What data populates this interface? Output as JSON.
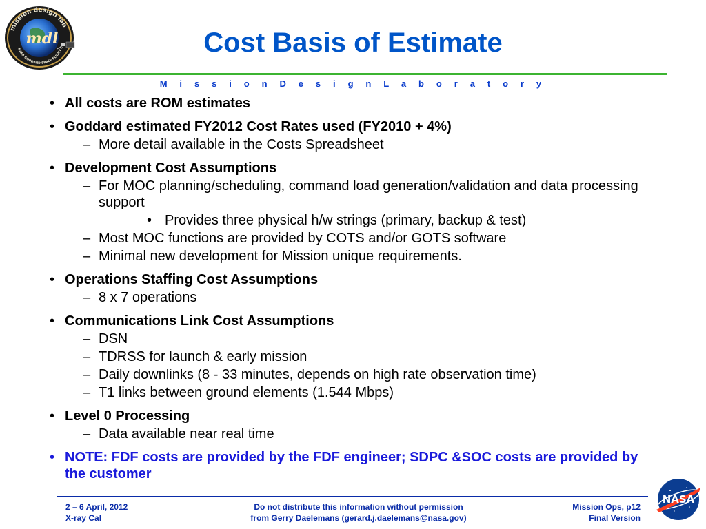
{
  "header": {
    "logo_name": "mdl-logo",
    "title": "Cost Basis of Estimate",
    "lab_name": "M i s s i o n   D e s i g n   L a b o r a t o r y"
  },
  "bullets": [
    {
      "text": "All costs are ROM estimates",
      "subs": []
    },
    {
      "text": "Goddard estimated FY2012 Cost Rates used (FY2010 + 4%)",
      "subs": [
        {
          "text": "More detail available in the Costs Spreadsheet",
          "subs": []
        }
      ]
    },
    {
      "text": "Development Cost Assumptions",
      "subs": [
        {
          "text": "For MOC planning/scheduling, command load generation/validation and data processing support",
          "subs": [
            "Provides three physical h/w strings (primary, backup & test)"
          ]
        },
        {
          "text": "Most MOC functions are provided by COTS and/or GOTS software",
          "subs": []
        },
        {
          "text": "Minimal new development for Mission unique requirements.",
          "subs": []
        }
      ]
    },
    {
      "text": "Operations Staffing Cost Assumptions",
      "subs": [
        {
          "text": "8 x 7 operations",
          "subs": []
        }
      ]
    },
    {
      "text": "Communications Link Cost Assumptions",
      "subs": [
        {
          "text": "DSN",
          "subs": []
        },
        {
          "text": "TDRSS for launch & early mission",
          "subs": []
        },
        {
          "text": "Daily downlinks (8 - 33 minutes, depends on high rate observation time)",
          "subs": []
        },
        {
          "text": "T1 links between ground elements (1.544 Mbps)",
          "subs": []
        }
      ]
    },
    {
      "text": "Level 0 Processing",
      "subs": [
        {
          "text": "Data available near real time",
          "subs": []
        }
      ]
    }
  ],
  "note": "NOTE:  FDF costs are provided by the FDF engineer; SDPC &SOC costs are provided by the customer",
  "footer": {
    "left_line1": "2 – 6 April, 2012",
    "left_line2": "X-ray Cal",
    "center_line1": "Do not distribute this information without permission",
    "center_line2": "from Gerry Daelemans (gerard.j.daelemans@nasa.gov)",
    "right_line1": "Mission Ops, p12",
    "right_line2": "Final Version"
  },
  "logo_texts": {
    "mdl_ring": "mission design lab",
    "mdl_center": "mdl",
    "mdl_bottom": "NASA GODDARD SPACE FLIGHT CENTER",
    "nasa": "NASA"
  },
  "colors": {
    "title": "#0055c8",
    "rule_green": "#3cb431",
    "lab_name": "#0a3ccc",
    "note": "#1a1adb",
    "footer": "#0a2ca8"
  }
}
